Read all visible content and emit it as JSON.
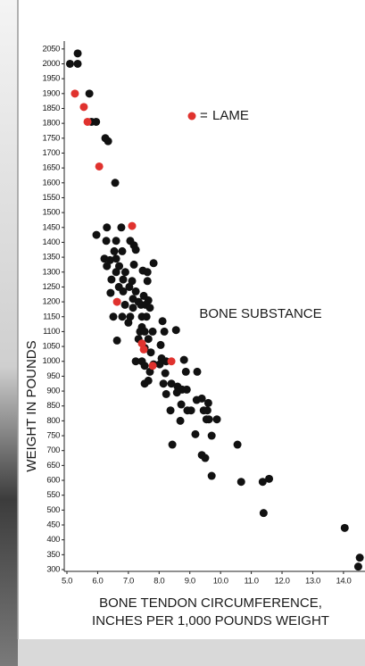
{
  "chart_data": {
    "type": "scatter",
    "y_label": "WEIGHT IN POUNDS",
    "x_label": [
      "BONE TENDON CIRCUMFERENCE,",
      "INCHES PER 1,000 POUNDS WEIGHT"
    ],
    "annotations": [
      "BONE SUBSTANCE"
    ],
    "xlim": [
      5,
      14.7
    ],
    "ylim": [
      300,
      2075
    ],
    "xticks": [
      {
        "value": 5,
        "label": "5.0"
      },
      {
        "value": 6,
        "label": "6.0"
      },
      {
        "value": 7,
        "label": "7.0"
      },
      {
        "value": 8,
        "label": "8.0"
      },
      {
        "value": 9,
        "label": "9.0"
      },
      {
        "value": 10,
        "label": "10.0"
      },
      {
        "value": 11,
        "label": "11.0"
      },
      {
        "value": 12,
        "label": "12.0"
      },
      {
        "value": 13,
        "label": "13.0"
      },
      {
        "value": 14,
        "label": "14.0"
      }
    ],
    "yticks": [
      300,
      350,
      400,
      450,
      500,
      550,
      600,
      650,
      700,
      750,
      800,
      850,
      900,
      950,
      1000,
      1050,
      1100,
      1150,
      1200,
      1250,
      1300,
      1350,
      1400,
      1450,
      1500,
      1550,
      1600,
      1650,
      1700,
      1750,
      1800,
      1850,
      1900,
      1950,
      2000,
      2050
    ],
    "grid": false,
    "series": [
      {
        "color": "#111111",
        "x": [
          5.1,
          5.35,
          5.35,
          5.73,
          5.8,
          5.95,
          6.25,
          6.34,
          6.57,
          5.96,
          6.3,
          6.77,
          6.28,
          6.6,
          7.06,
          7.18,
          6.54,
          6.22,
          6.4,
          6.6,
          6.8,
          7.24,
          6.3,
          6.7,
          7.18,
          7.82,
          6.6,
          6.9,
          7.47,
          7.62,
          6.45,
          6.83,
          7.12,
          7.62,
          6.69,
          7.03,
          6.42,
          6.83,
          7.24,
          7.5,
          7.15,
          7.33,
          7.65,
          6.89,
          7.15,
          7.41,
          7.56,
          7.7,
          6.51,
          6.8,
          7.06,
          7.44,
          7.59,
          7.0,
          7.44,
          8.11,
          7.79,
          7.38,
          7.53,
          8.17,
          6.63,
          7.33,
          7.65,
          8.55,
          8.05,
          7.53,
          7.73,
          7.24,
          7.44,
          8.08,
          8.23,
          7.53,
          7.82,
          8.02,
          8.81,
          7.7,
          8.2,
          8.87,
          9.24,
          7.65,
          7.53,
          8.14,
          8.4,
          8.6,
          8.75,
          8.23,
          8.58,
          8.9,
          9.22,
          9.39,
          9.6,
          8.72,
          9.04,
          8.92,
          9.45,
          9.57,
          8.37,
          9.62,
          9.88,
          9.54,
          8.69,
          9.18,
          9.71,
          8.43,
          10.55,
          9.39,
          9.5,
          9.71,
          10.67,
          11.37,
          11.58,
          11.4,
          14.04,
          14.53,
          14.48
        ],
        "values": [
          2000,
          2035,
          2000,
          1900,
          1805,
          1805,
          1750,
          1740,
          1600,
          1425,
          1450,
          1450,
          1405,
          1405,
          1405,
          1390,
          1370,
          1345,
          1340,
          1345,
          1370,
          1375,
          1320,
          1320,
          1325,
          1330,
          1300,
          1300,
          1305,
          1300,
          1275,
          1275,
          1270,
          1270,
          1250,
          1250,
          1230,
          1235,
          1235,
          1220,
          1210,
          1200,
          1205,
          1190,
          1180,
          1190,
          1190,
          1180,
          1150,
          1150,
          1150,
          1150,
          1150,
          1130,
          1115,
          1135,
          1100,
          1100,
          1100,
          1100,
          1070,
          1075,
          1075,
          1105,
          1055,
          1045,
          1030,
          1000,
          1000,
          1010,
          1000,
          985,
          990,
          990,
          1005,
          965,
          960,
          965,
          965,
          935,
          925,
          925,
          925,
          915,
          905,
          890,
          895,
          905,
          870,
          875,
          860,
          855,
          835,
          835,
          835,
          835,
          835,
          805,
          805,
          805,
          800,
          755,
          750,
          720,
          720,
          685,
          675,
          615,
          595,
          595,
          605,
          490,
          440,
          340,
          310
        ]
      },
      {
        "name": "LAME",
        "color": "#e0322e",
        "x": [
          5.26,
          5.55,
          5.67,
          6.05,
          7.12,
          6.63,
          7.44,
          7.5,
          7.79,
          8.4
        ],
        "values": [
          1900,
          1855,
          1805,
          1655,
          1455,
          1200,
          1060,
          1040,
          985,
          1000
        ]
      }
    ]
  }
}
